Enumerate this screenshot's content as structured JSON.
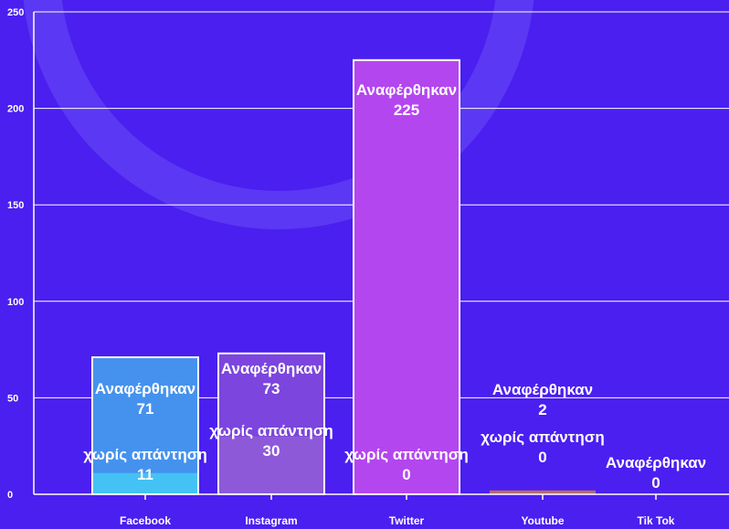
{
  "chart_data": {
    "type": "bar",
    "stacked": false,
    "categories": [
      "Facebook",
      "Instagram",
      "Twitter",
      "Youtube",
      "Tik Tok"
    ],
    "series": [
      {
        "name": "Αναφέρθηκαν",
        "values": [
          71,
          73,
          225,
          2,
          0
        ],
        "colors": [
          "#4592ee",
          "#7c45dd",
          "#b446ef",
          "#b86a6a",
          "#b86a6a"
        ]
      },
      {
        "name": "χωρίς απάντηση",
        "values": [
          11,
          30,
          0,
          0,
          null
        ],
        "colors": [
          "#44c2f3",
          "#8e59d9",
          "#b446ef",
          "#b86a6a",
          "#b86a6a"
        ]
      }
    ],
    "title": "",
    "xlabel": "",
    "ylabel": "",
    "ylim": [
      0,
      250
    ],
    "yticks": [
      0,
      50,
      100,
      150,
      200,
      250
    ],
    "grid": true,
    "legend": "none"
  },
  "colors": {
    "background": "#4a1ff0",
    "grid": "#ffffff",
    "text": "#ffffff",
    "decoration": "#6a4df5"
  }
}
